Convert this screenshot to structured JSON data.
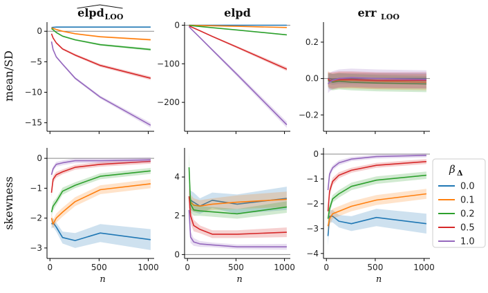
{
  "figure": {
    "row_labels": [
      "mean/SD",
      "skewness"
    ],
    "xlabel": "n",
    "legend": {
      "title_main": "β",
      "title_sub": "Δ",
      "placement": "right",
      "entries": [
        {
          "label": "0.0",
          "color": "#1f77b4"
        },
        {
          "label": "0.1",
          "color": "#ff7f0e"
        },
        {
          "label": "0.2",
          "color": "#2ca02c"
        },
        {
          "label": "0.5",
          "color": "#d62728"
        },
        {
          "label": "1.0",
          "color": "#9467bd"
        }
      ]
    }
  },
  "chart_data": [
    {
      "type": "line",
      "panel": "top-left",
      "title_main": "elpd",
      "title_hat": true,
      "title_sub": "LOO",
      "x": [
        16,
        32,
        64,
        128,
        256,
        512,
        1024
      ],
      "xlim": [
        -30,
        1060
      ],
      "xticks": [
        0,
        500,
        1000
      ],
      "ylim": [
        -16.4,
        1.5
      ],
      "yticks": [
        0,
        -5,
        -10,
        -15
      ],
      "hline": 0,
      "series": [
        {
          "name": "0.0",
          "values": [
            0.62,
            0.65,
            0.68,
            0.68,
            0.68,
            0.68,
            0.68
          ],
          "band": [
            0.05,
            0.05,
            0.05,
            0.05,
            0.05,
            0.05,
            0.05
          ]
        },
        {
          "name": "0.1",
          "values": [
            0.55,
            0.48,
            0.3,
            0.0,
            -0.4,
            -0.9,
            -1.4
          ],
          "band": [
            0.06,
            0.06,
            0.07,
            0.08,
            0.1,
            0.12,
            0.15
          ]
        },
        {
          "name": "0.2",
          "values": [
            0.45,
            0.25,
            -0.2,
            -0.8,
            -1.4,
            -2.2,
            -3.0
          ],
          "band": [
            0.06,
            0.07,
            0.08,
            0.1,
            0.12,
            0.15,
            0.2
          ]
        },
        {
          "name": "0.5",
          "values": [
            -0.4,
            -1.1,
            -1.9,
            -2.9,
            -3.9,
            -5.6,
            -7.7
          ],
          "band": [
            0.1,
            0.12,
            0.14,
            0.16,
            0.2,
            0.25,
            0.3
          ]
        },
        {
          "name": "1.0",
          "values": [
            -1.7,
            -3.0,
            -4.2,
            -5.4,
            -7.7,
            -10.8,
            -15.4
          ],
          "band": [
            0.15,
            0.15,
            0.15,
            0.18,
            0.2,
            0.25,
            0.4
          ]
        }
      ]
    },
    {
      "type": "line",
      "panel": "top-middle",
      "title_main": "elpd",
      "title_hat": false,
      "title_sub": "",
      "x": [
        16,
        32,
        64,
        128,
        256,
        512,
        1024
      ],
      "xlim": [
        -30,
        1060
      ],
      "xticks": [
        0,
        500,
        1000
      ],
      "ylim": [
        -275,
        8
      ],
      "yticks": [
        0,
        -100,
        -200
      ],
      "hline": 0,
      "series": [
        {
          "name": "0.0",
          "values": [
            0,
            0,
            0,
            0,
            0,
            0,
            0
          ],
          "band": [
            0.3,
            0.3,
            0.3,
            0.3,
            0.3,
            0.3,
            0.3
          ]
        },
        {
          "name": "0.1",
          "values": [
            -0.1,
            -0.2,
            -0.4,
            -0.8,
            -1.5,
            -3.0,
            -6.0
          ],
          "band": [
            0.3,
            0.3,
            0.3,
            0.4,
            0.5,
            0.6,
            0.8
          ]
        },
        {
          "name": "0.2",
          "values": [
            -0.4,
            -0.8,
            -1.6,
            -3.2,
            -6.5,
            -12.5,
            -25
          ],
          "band": [
            0.3,
            0.4,
            0.5,
            0.6,
            0.8,
            1.0,
            1.5
          ]
        },
        {
          "name": "0.5",
          "values": [
            -1.8,
            -3.6,
            -7.2,
            -14.4,
            -29,
            -57,
            -114
          ],
          "band": [
            0.5,
            0.6,
            0.8,
            1.2,
            2.0,
            3.0,
            5.0
          ]
        },
        {
          "name": "1.0",
          "values": [
            -4,
            -8,
            -16,
            -32,
            -64,
            -128,
            -258
          ],
          "band": [
            0.8,
            1.0,
            1.5,
            2.0,
            3.0,
            5.0,
            8.0
          ]
        }
      ]
    },
    {
      "type": "line",
      "panel": "top-right",
      "title_main": "err",
      "title_hat": false,
      "title_sub": "LOO",
      "x": [
        16,
        32,
        64,
        128,
        256,
        512,
        1024
      ],
      "xlim": [
        -30,
        1060
      ],
      "xticks": [
        0,
        500,
        1000
      ],
      "ylim": [
        -0.29,
        0.31
      ],
      "yticks": [
        0.2,
        0.0,
        -0.2
      ],
      "hline": 0,
      "series": [
        {
          "name": "0.0",
          "values": [
            0.0,
            0.0,
            -0.005,
            0.0,
            0.0,
            0.0,
            0.0
          ],
          "band": [
            0.03,
            0.03,
            0.03,
            0.03,
            0.03,
            0.03,
            0.03
          ]
        },
        {
          "name": "0.1",
          "values": [
            -0.005,
            -0.01,
            -0.015,
            -0.01,
            -0.01,
            -0.015,
            -0.02
          ],
          "band": [
            0.04,
            0.04,
            0.045,
            0.045,
            0.045,
            0.045,
            0.045
          ]
        },
        {
          "name": "0.2",
          "values": [
            -0.01,
            -0.015,
            -0.02,
            -0.015,
            -0.02,
            -0.025,
            -0.03
          ],
          "band": [
            0.04,
            0.045,
            0.045,
            0.045,
            0.045,
            0.045,
            0.045
          ]
        },
        {
          "name": "0.5",
          "values": [
            0.0,
            -0.01,
            -0.01,
            -0.005,
            -0.005,
            -0.01,
            -0.01
          ],
          "band": [
            0.04,
            0.045,
            0.045,
            0.045,
            0.045,
            0.045,
            0.045
          ]
        },
        {
          "name": "1.0",
          "values": [
            -0.03,
            -0.02,
            -0.01,
            0.0,
            0.005,
            0.0,
            -0.005
          ],
          "band": [
            0.05,
            0.05,
            0.05,
            0.05,
            0.05,
            0.05,
            0.05
          ]
        }
      ]
    },
    {
      "type": "line",
      "panel": "bottom-left",
      "x": [
        16,
        32,
        64,
        128,
        256,
        512,
        1024
      ],
      "xlim": [
        -30,
        1060
      ],
      "xticks": [
        0,
        500,
        1000
      ],
      "ylim": [
        -3.35,
        0.35
      ],
      "yticks": [
        0,
        -1,
        -2,
        -3
      ],
      "hline": 0,
      "series": [
        {
          "name": "0.0",
          "values": [
            -2.2,
            -2.15,
            -2.3,
            -2.65,
            -2.75,
            -2.5,
            -2.72
          ],
          "band": [
            0.15,
            0.15,
            0.15,
            0.2,
            0.25,
            0.3,
            0.35
          ]
        },
        {
          "name": "0.1",
          "values": [
            -2.0,
            -2.2,
            -2.0,
            -1.8,
            -1.45,
            -1.05,
            -0.85
          ],
          "band": [
            0.15,
            0.15,
            0.15,
            0.15,
            0.15,
            0.15,
            0.15
          ]
        },
        {
          "name": "0.2",
          "values": [
            -1.8,
            -1.6,
            -1.45,
            -1.1,
            -0.9,
            -0.6,
            -0.42
          ],
          "band": [
            0.15,
            0.15,
            0.12,
            0.12,
            0.1,
            0.1,
            0.1
          ]
        },
        {
          "name": "0.5",
          "values": [
            -1.15,
            -0.7,
            -0.55,
            -0.45,
            -0.3,
            -0.2,
            -0.1
          ],
          "band": [
            0.15,
            0.12,
            0.1,
            0.08,
            0.08,
            0.08,
            0.08
          ]
        },
        {
          "name": "1.0",
          "values": [
            -0.55,
            -0.35,
            -0.2,
            -0.15,
            -0.08,
            -0.08,
            -0.05
          ],
          "band": [
            0.1,
            0.08,
            0.08,
            0.08,
            0.08,
            0.08,
            0.08
          ]
        }
      ]
    },
    {
      "type": "line",
      "panel": "bottom-middle",
      "x": [
        16,
        32,
        64,
        128,
        256,
        512,
        1024
      ],
      "xlim": [
        -30,
        1060
      ],
      "xticks": [
        0,
        500,
        1000
      ],
      "ylim": [
        -0.2,
        5.5
      ],
      "yticks": [
        0,
        2,
        4
      ],
      "hline": 0,
      "series": [
        {
          "name": "0.0",
          "values": [
            3.0,
            2.8,
            2.7,
            2.5,
            2.8,
            2.6,
            2.9
          ],
          "band": [
            0.6,
            0.5,
            0.5,
            0.4,
            0.4,
            0.5,
            0.6
          ]
        },
        {
          "name": "0.1",
          "values": [
            2.9,
            2.7,
            2.55,
            2.5,
            2.6,
            2.7,
            2.85
          ],
          "band": [
            0.5,
            0.4,
            0.35,
            0.3,
            0.3,
            0.35,
            0.4
          ]
        },
        {
          "name": "0.2",
          "values": [
            4.5,
            2.6,
            2.3,
            2.25,
            2.2,
            2.1,
            2.45
          ],
          "band": [
            0.8,
            0.4,
            0.3,
            0.25,
            0.25,
            0.25,
            0.3
          ]
        },
        {
          "name": "0.5",
          "values": [
            3.0,
            2.0,
            1.5,
            1.3,
            1.05,
            1.05,
            1.15
          ],
          "band": [
            0.6,
            0.4,
            0.3,
            0.2,
            0.2,
            0.2,
            0.25
          ]
        },
        {
          "name": "1.0",
          "values": [
            2.3,
            0.9,
            0.65,
            0.55,
            0.5,
            0.4,
            0.4
          ],
          "band": [
            0.6,
            0.3,
            0.2,
            0.15,
            0.12,
            0.12,
            0.15
          ]
        }
      ]
    },
    {
      "type": "line",
      "panel": "bottom-right",
      "x": [
        16,
        32,
        64,
        128,
        256,
        512,
        1024
      ],
      "xlim": [
        -30,
        1060
      ],
      "xticks": [
        0,
        500,
        1000
      ],
      "ylim": [
        -4.2,
        0.25
      ],
      "yticks": [
        0,
        -1,
        -2,
        -3,
        -4
      ],
      "hline": 0,
      "series": [
        {
          "name": "0.0",
          "values": [
            -3.3,
            -2.5,
            -2.5,
            -2.7,
            -2.8,
            -2.55,
            -2.8
          ],
          "band": [
            0.4,
            0.25,
            0.25,
            0.25,
            0.3,
            0.35,
            0.4
          ]
        },
        {
          "name": "0.1",
          "values": [
            -2.9,
            -2.6,
            -2.4,
            -2.3,
            -2.1,
            -1.85,
            -1.6
          ],
          "band": [
            0.3,
            0.25,
            0.2,
            0.2,
            0.2,
            0.2,
            0.2
          ]
        },
        {
          "name": "0.2",
          "values": [
            -2.6,
            -2.2,
            -1.8,
            -1.6,
            -1.3,
            -1.05,
            -0.85
          ],
          "band": [
            0.25,
            0.2,
            0.15,
            0.15,
            0.15,
            0.15,
            0.15
          ]
        },
        {
          "name": "0.5",
          "values": [
            -2.3,
            -1.5,
            -1.1,
            -0.85,
            -0.65,
            -0.45,
            -0.3
          ],
          "band": [
            0.25,
            0.2,
            0.15,
            0.12,
            0.1,
            0.1,
            0.1
          ]
        },
        {
          "name": "1.0",
          "values": [
            -1.45,
            -0.8,
            -0.55,
            -0.35,
            -0.2,
            -0.1,
            -0.05
          ],
          "band": [
            0.2,
            0.15,
            0.1,
            0.1,
            0.08,
            0.08,
            0.08
          ]
        }
      ]
    }
  ]
}
